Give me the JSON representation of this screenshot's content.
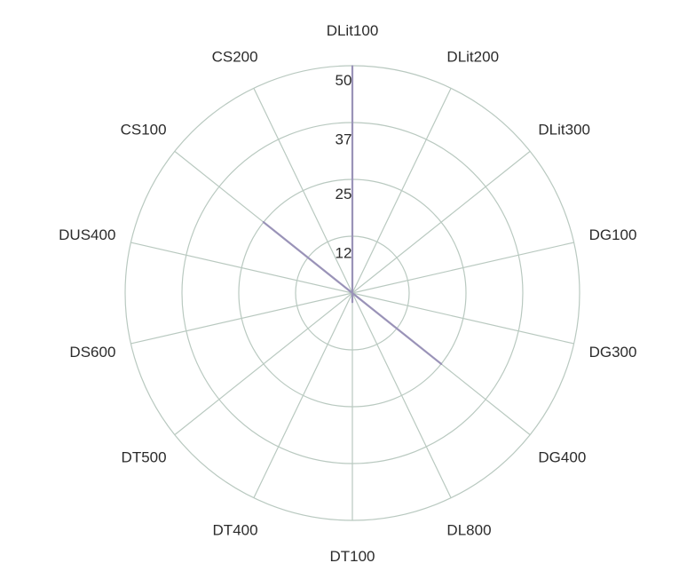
{
  "chart_data": {
    "type": "radar",
    "title": "",
    "categories": [
      "DLit100",
      "DLit200",
      "DLit300",
      "DG100",
      "DG300",
      "DG400",
      "DL800",
      "DT100",
      "DT400",
      "DT500",
      "DS600",
      "DUS400",
      "CS100",
      "CS200"
    ],
    "values": [
      50,
      0,
      0,
      0,
      0,
      25,
      0,
      2,
      0,
      0,
      0,
      0,
      25,
      0
    ],
    "series_color": "#9a93b8",
    "ticks": [
      12,
      25,
      37,
      50
    ],
    "tick_labels": [
      "12",
      "25",
      "37",
      "50"
    ],
    "rmax": 50,
    "rings": [
      12.5,
      25,
      37.5,
      50
    ],
    "grid": true,
    "legend": "none"
  }
}
